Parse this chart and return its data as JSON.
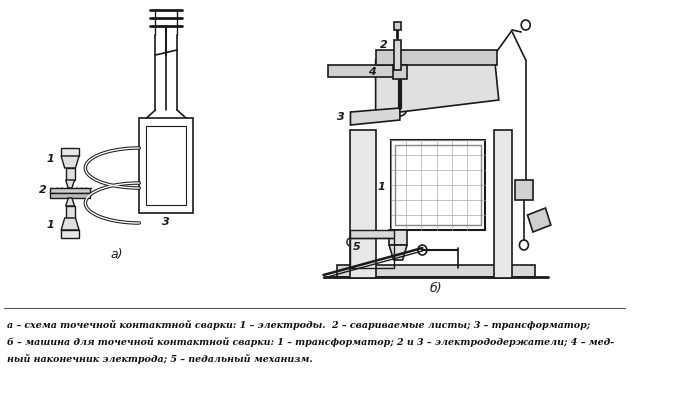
{
  "background_color": "#ffffff",
  "caption_line1": "а – схема точечной контактной сварки: 1 – электроды.  2 – свариваемые листы; 3 – трансформатор;",
  "caption_line2": "б – машина для точечной контактной сварки: 1 – трансформатор; 2 и 3 – электрододержатели; 4 – мед-",
  "caption_line3": "ный наконечник электрода; 5 – педальный механизм.",
  "label_a": "а)",
  "label_b": "б)",
  "fig_width": 7.0,
  "fig_height": 4.07,
  "dpi": 100
}
